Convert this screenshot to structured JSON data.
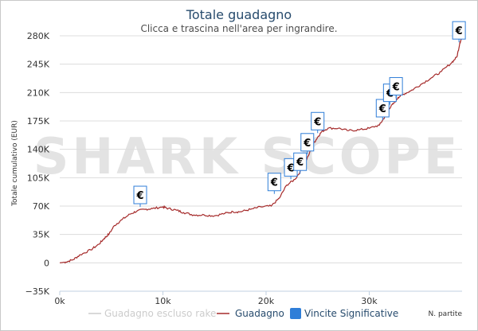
{
  "chart_data": {
    "type": "line",
    "title": "Totale guadagno",
    "subtitle": "Clicca e trascina nell'area per ingrandire.",
    "ylabel": "Totale cumulativo (EUR)",
    "xlabel": "N. partite",
    "ylim": [
      -35000,
      280000
    ],
    "xlim": [
      0,
      39000
    ],
    "yticks": [
      -35000,
      0,
      35000,
      70000,
      105000,
      140000,
      175000,
      210000,
      245000,
      280000
    ],
    "ytick_labels": [
      "−35K",
      "0",
      "35K",
      "70K",
      "105K",
      "140K",
      "175K",
      "210K",
      "245K",
      "280K"
    ],
    "xticks": [
      0,
      10000,
      20000,
      30000
    ],
    "xtick_labels": [
      "0k",
      "10k",
      "20k",
      "30k"
    ],
    "grid": "horizontal",
    "watermark": "SHARK SCOPE",
    "series": [
      {
        "name": "Guadagno",
        "color": "#a52a2a",
        "points": [
          [
            0,
            0
          ],
          [
            600,
            1000
          ],
          [
            1300,
            4000
          ],
          [
            2000,
            10000
          ],
          [
            3000,
            16000
          ],
          [
            3800,
            23000
          ],
          [
            4300,
            30000
          ],
          [
            4800,
            36000
          ],
          [
            5300,
            46000
          ],
          [
            6000,
            53000
          ],
          [
            6800,
            60000
          ],
          [
            7500,
            64000
          ],
          [
            8300,
            66000
          ],
          [
            9000,
            67000
          ],
          [
            10000,
            69000
          ],
          [
            10500,
            67000
          ],
          [
            11300,
            65000
          ],
          [
            12000,
            62000
          ],
          [
            13000,
            59000
          ],
          [
            14000,
            59000
          ],
          [
            15000,
            58000
          ],
          [
            16000,
            61000
          ],
          [
            16800,
            63000
          ],
          [
            17500,
            63000
          ],
          [
            18500,
            66000
          ],
          [
            19500,
            69000
          ],
          [
            20500,
            70000
          ],
          [
            21300,
            80000
          ],
          [
            22000,
            96000
          ],
          [
            22800,
            103000
          ],
          [
            23500,
            116000
          ],
          [
            24200,
            135000
          ],
          [
            24600,
            147000
          ],
          [
            25000,
            155000
          ],
          [
            25400,
            162000
          ],
          [
            26000,
            166000
          ],
          [
            27000,
            166000
          ],
          [
            28000,
            163000
          ],
          [
            29000,
            164000
          ],
          [
            30000,
            166000
          ],
          [
            31000,
            170000
          ],
          [
            31500,
            180000
          ],
          [
            31900,
            190000
          ],
          [
            32400,
            197000
          ],
          [
            32800,
            204000
          ],
          [
            33300,
            208000
          ],
          [
            34000,
            212000
          ],
          [
            35000,
            220000
          ],
          [
            36000,
            228000
          ],
          [
            37000,
            236000
          ],
          [
            38000,
            247000
          ],
          [
            38500,
            254000
          ],
          [
            38800,
            272000
          ],
          [
            39000,
            278000
          ]
        ]
      },
      {
        "name": "Guadagno escluso rake",
        "color": "#cccccc",
        "points": []
      },
      {
        "name": "Vincite Significative",
        "color": "#2f7ed8",
        "flags": [
          {
            "x": 7800,
            "y": 69000,
            "label": "€"
          },
          {
            "x": 20800,
            "y": 85000,
            "label": "€"
          },
          {
            "x": 22400,
            "y": 103000,
            "label": "€"
          },
          {
            "x": 23300,
            "y": 110000,
            "label": "€"
          },
          {
            "x": 24000,
            "y": 134000,
            "label": "€"
          },
          {
            "x": 25000,
            "y": 160000,
            "label": "€"
          },
          {
            "x": 31300,
            "y": 176000,
            "label": "€"
          },
          {
            "x": 32000,
            "y": 195000,
            "label": "€"
          },
          {
            "x": 32600,
            "y": 203000,
            "label": "€"
          },
          {
            "x": 38700,
            "y": 272000,
            "label": "€"
          }
        ]
      }
    ],
    "legend": {
      "position": "bottom",
      "items": [
        {
          "label": "Guadagno escluso rake",
          "color": "#cccccc"
        },
        {
          "label": "Guadagno",
          "color": "#a52a2a"
        },
        {
          "label": "Vincite Significative",
          "color": "#2f7ed8"
        }
      ]
    }
  }
}
